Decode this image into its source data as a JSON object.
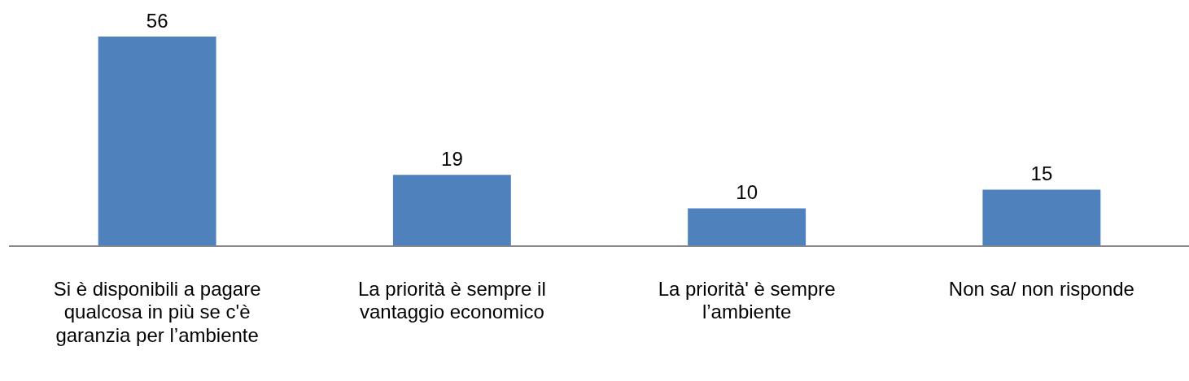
{
  "chart_data": {
    "type": "bar",
    "categories": [
      "Si è disponibili a pagare qualcosa in più se c'è garanzia per l’ambiente",
      "La priorità è sempre il vantaggio economico",
      "La priorità' è sempre l’ambiente",
      "Non sa/ non risponde"
    ],
    "values": [
      56,
      19,
      10,
      15
    ],
    "color": "#4f81bd",
    "data_labels": true
  }
}
